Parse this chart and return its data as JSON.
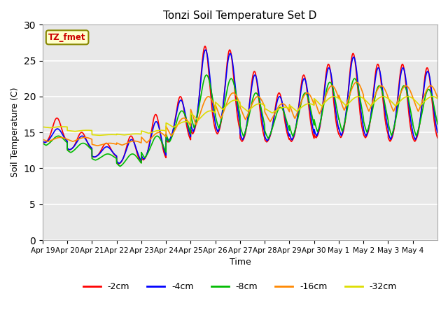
{
  "title": "Tonzi Soil Temperature Set D",
  "xlabel": "Time",
  "ylabel": "Soil Temperature (C)",
  "ylim": [
    0,
    30
  ],
  "yticks": [
    0,
    5,
    10,
    15,
    20,
    25,
    30
  ],
  "background_color": "#e8e8e8",
  "legend_label": "TZ_fmet",
  "series_labels": [
    "-2cm",
    "-4cm",
    "-8cm",
    "-16cm",
    "-32cm"
  ],
  "series_colors": [
    "#ff0000",
    "#0000ff",
    "#00bb00",
    "#ff8800",
    "#dddd00"
  ],
  "x_tick_labels": [
    "Apr 19",
    "Apr 20",
    "Apr 21",
    "Apr 22",
    "Apr 23",
    "Apr 24",
    "Apr 25",
    "Apr 26",
    "Apr 27",
    "Apr 28",
    "Apr 29",
    "Apr 30",
    "May 1",
    "May 2",
    "May 3",
    "May 4"
  ],
  "n_days": 16
}
